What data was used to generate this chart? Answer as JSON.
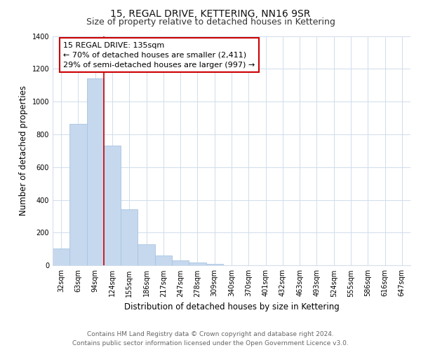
{
  "title": "15, REGAL DRIVE, KETTERING, NN16 9SR",
  "subtitle": "Size of property relative to detached houses in Kettering",
  "xlabel": "Distribution of detached houses by size in Kettering",
  "ylabel": "Number of detached properties",
  "bar_labels": [
    "32sqm",
    "63sqm",
    "94sqm",
    "124sqm",
    "155sqm",
    "186sqm",
    "217sqm",
    "247sqm",
    "278sqm",
    "309sqm",
    "340sqm",
    "370sqm",
    "401sqm",
    "432sqm",
    "463sqm",
    "493sqm",
    "524sqm",
    "555sqm",
    "586sqm",
    "616sqm",
    "647sqm"
  ],
  "bar_values": [
    105,
    863,
    1143,
    730,
    343,
    130,
    62,
    32,
    18,
    10,
    0,
    0,
    0,
    0,
    0,
    0,
    0,
    0,
    0,
    0,
    0
  ],
  "bar_color": "#c5d8ee",
  "bar_edge_color": "#a8c4e0",
  "ylim": [
    0,
    1400
  ],
  "yticks": [
    0,
    200,
    400,
    600,
    800,
    1000,
    1200,
    1400
  ],
  "annotation_title": "15 REGAL DRIVE: 135sqm",
  "annotation_line1": "← 70% of detached houses are smaller (2,411)",
  "annotation_line2": "29% of semi-detached houses are larger (997) →",
  "annotation_box_color": "#ffffff",
  "annotation_box_edge": "#cc0000",
  "footer_line1": "Contains HM Land Registry data © Crown copyright and database right 2024.",
  "footer_line2": "Contains public sector information licensed under the Open Government Licence v3.0.",
  "background_color": "#ffffff",
  "grid_color": "#d0dceb",
  "title_fontsize": 10,
  "subtitle_fontsize": 9,
  "axis_label_fontsize": 8.5,
  "tick_fontsize": 7,
  "annotation_fontsize": 8,
  "footer_fontsize": 6.5,
  "red_line_color": "#cc0000",
  "red_line_x": 2.5
}
